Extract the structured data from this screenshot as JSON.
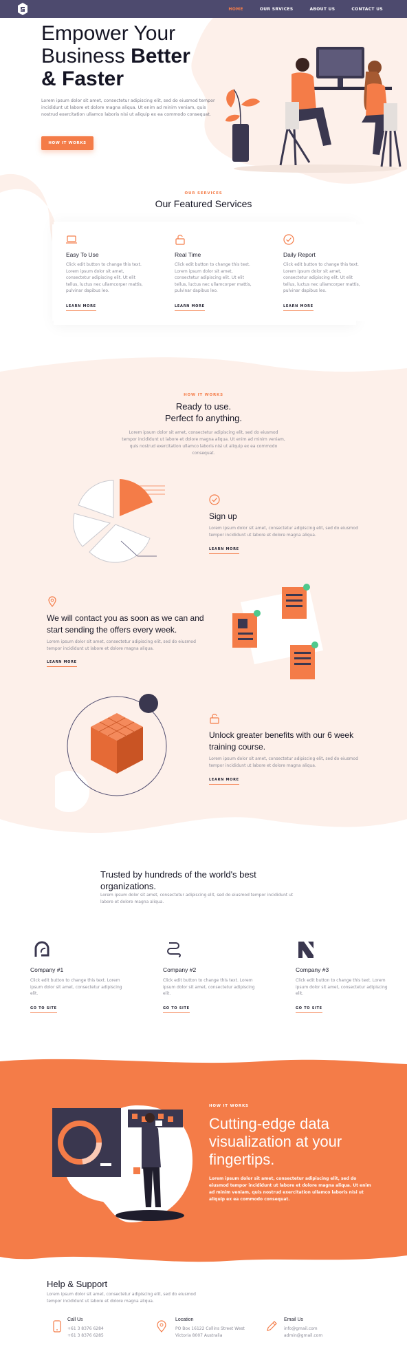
{
  "nav": {
    "links": [
      {
        "label": "HOME",
        "active": true
      },
      {
        "label": "OUR SRVICES",
        "active": false
      },
      {
        "label": "ABOUT US",
        "active": false
      },
      {
        "label": "CONTACT US",
        "active": false
      }
    ]
  },
  "hero": {
    "title_line1": "Empower Your",
    "title_line2_regular": "Business ",
    "title_line2_bold": "Better",
    "title_line3": "& Faster",
    "text": "Lorem ipsum dolor sit amet, consectetur adipiscing elit, sed do eiusmod tempor incididunt ut labore et dolore magna aliqua. Ut enim ad minim veniam, quis nostrud exercitation ullamco laboris nisi ut aliquip ex ea commodo consequat.",
    "button": "HOW IT WORKS"
  },
  "services": {
    "eyebrow": "OUR SERVICES",
    "title": "Our Featured Services",
    "items": [
      {
        "icon": "laptop-icon",
        "title": "Easy To Use",
        "text": "Click edit button to change this text. Lorem ipsum dolor sit amet, consectetur adipiscing elit. Ut elit tellus, luctus nec ullamcorper mattis, pulvinar dapibus leo.",
        "link": "LEARN MORE"
      },
      {
        "icon": "lock-icon",
        "title": "Real Time",
        "text": "Click edit button to change this text. Lorem ipsum dolor sit amet, consectetur adipiscing elit. Ut elit tellus, luctus nec ullamcorper mattis, pulvinar dapibus leo.",
        "link": "LEARN MORE"
      },
      {
        "icon": "check-circle-icon",
        "title": "Daily Report",
        "text": "Click edit button to change this text. Lorem ipsum dolor sit amet, consectetur adipiscing elit. Ut elit tellus, luctus nec ullamcorper mattis, pulvinar dapibus leo.",
        "link": "LEARN MORE"
      }
    ]
  },
  "how": {
    "eyebrow": "HOW IT WORKS",
    "title_line1": "Ready to use.",
    "title_line2": "Perfect fo anything.",
    "text": "Lorem ipsum dolor sit amet, consectetur adipiscing elit, sed do eiusmod tempor incididunt ut labore et dolore magna aliqua. Ut enim ad minim veniam, quis nostrud exercitation ullamco laboris nisi ut aliquip ex ea commodo consequat.",
    "steps": [
      {
        "icon": "check-circle-icon",
        "title": "Sign up",
        "text": "Lorem ipsum dolor sit amet, consectetur adipiscing elit, sed do eiusmod tempor incididunt ut labore et dolore magna aliqua.",
        "link": "LEARN MORE"
      },
      {
        "icon": "location-pin-icon",
        "title": "We will contact you as soon as we can and start sending the offers every week.",
        "text": "Lorem ipsum dolor sit amet, consectetur adipiscing elit, sed do eiusmod tempor incididunt ut labore et dolore magna aliqua.",
        "link": "LEARN MORE"
      },
      {
        "icon": "lock-icon",
        "title": "Unlock greater benefits with our 6 week training course.",
        "text": "Lorem ipsum dolor sit amet, consectetur adipiscing elit, sed do eiusmod tempor incididunt ut labore et dolore magna aliqua.",
        "link": "LEARN MORE"
      }
    ]
  },
  "trusted": {
    "title": "Trusted by hundreds of the world's best organizations.",
    "text": "Lorem ipsum dolor sit amet, consectetur adipiscing elit, sed do eiusmod tempor incididunt ut labore et dolore magna aliqua.",
    "companies": [
      {
        "icon": "company-logo-1-icon",
        "name": "Company #1",
        "text": "Click edit button to change this text. Lorem ipsum dolor sit amet, consectetur adipiscing elit.",
        "link": "GO TO SITE"
      },
      {
        "icon": "company-logo-2-icon",
        "name": "Company #2",
        "text": "Click edit button to change this text. Lorem ipsum dolor sit amet, consectetur adipiscing elit.",
        "link": "GO TO SITE"
      },
      {
        "icon": "company-logo-3-icon",
        "name": "Company #3",
        "text": "Click edit button to change this text. Lorem ipsum dolor sit amet, consectetur adipiscing elit.",
        "link": "GO TO SITE"
      }
    ]
  },
  "dataviz": {
    "eyebrow": "HOW IT WORKS",
    "title": "Cutting-edge data visualization at your fingertips.",
    "text": "Lorem ipsum dolor sit amet, consectetur adipiscing elit, sed do eiusmod tempor incididunt ut labore et dolore magna aliqua. Ut enim ad minim veniam, quis nostrud exercitation ullamco laboris nisi ut aliquip ex ea commodo consequat."
  },
  "help": {
    "title": "Help & Support",
    "text": "Lorem ipsum dolor sit amet, consectetur adipiscing elit, sed do eiusmod tempor incididunt ut labore et dolore magna aliqua.",
    "contacts": [
      {
        "icon": "phone-icon",
        "label": "Call Us",
        "lines": [
          "+61 3 8376 6284",
          "+61 3 8376 6285"
        ]
      },
      {
        "icon": "location-pin-icon",
        "label": "Location",
        "lines": [
          "PO Box 16122 Collins Street West",
          "Victoria 8007 Australia"
        ]
      },
      {
        "icon": "pencil-icon",
        "label": "Email Us",
        "lines": [
          "info@gmail.com",
          "admin@gmail.com"
        ]
      }
    ]
  },
  "colors": {
    "accent": "#f47c48",
    "nav": "#4d4a6e",
    "peach": "#fdf0ea",
    "dark": "#141423"
  }
}
